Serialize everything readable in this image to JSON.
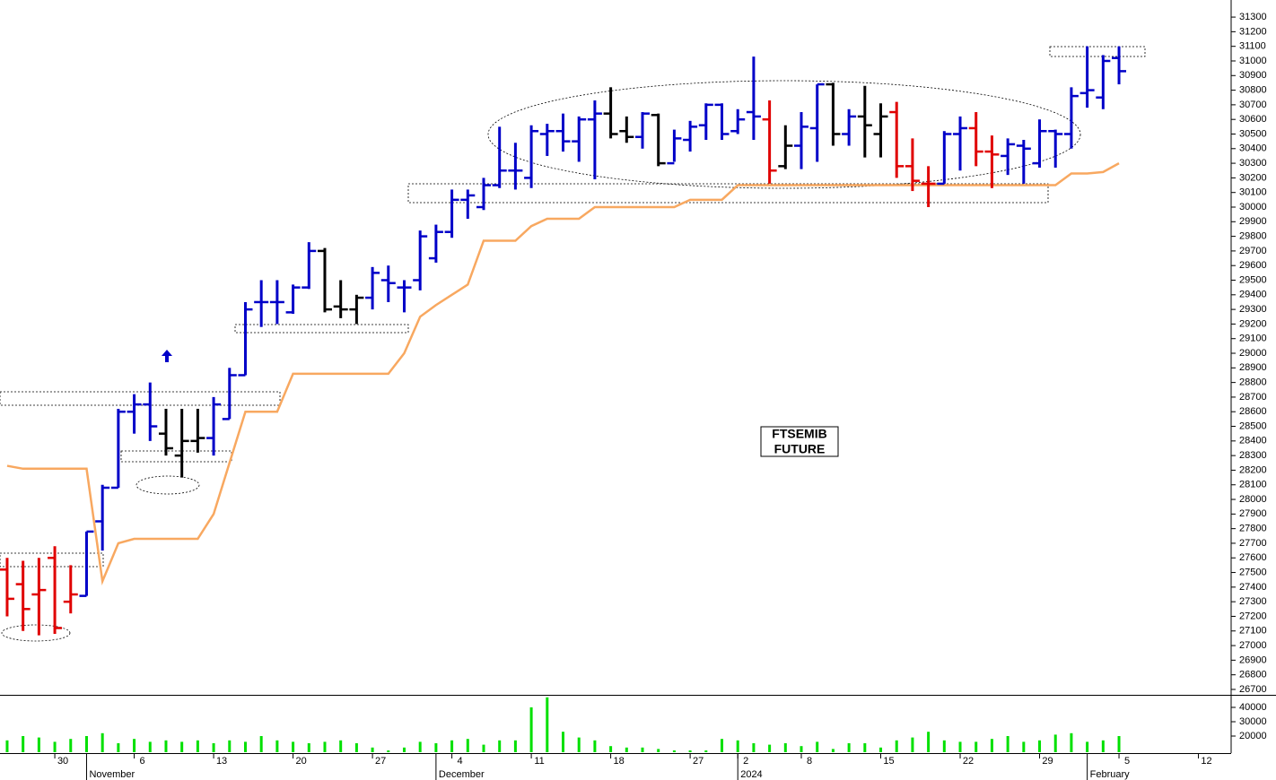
{
  "chart_data": [
    {
      "type": "ohlc",
      "annotation": [
        "FTSEMIB",
        "FUTURE"
      ],
      "open": [
        27520,
        27420,
        27350,
        27600,
        27300,
        27340,
        27850,
        28080,
        28600,
        28650,
        28450,
        28300,
        28400,
        28420,
        28550,
        28850,
        29350,
        29350,
        29280,
        29450,
        29700,
        29320,
        29300,
        29380,
        29500,
        29450,
        29500,
        29650,
        29830,
        30050,
        30000,
        30150,
        30250,
        30200,
        30500,
        30520,
        30450,
        30600,
        30640,
        30520,
        30480,
        30630,
        30300,
        30460,
        30560,
        30700,
        30520,
        30650,
        30600,
        30280,
        30420,
        30540,
        30840,
        30500,
        30620,
        30500,
        30650,
        30280,
        30160,
        30160,
        30500,
        30540,
        30380,
        30350,
        30420,
        30300,
        30520,
        30500,
        30780,
        30750,
        31020
      ],
      "high": [
        27600,
        27580,
        27600,
        27680,
        27550,
        27780,
        28100,
        28620,
        28720,
        28800,
        28620,
        28620,
        28620,
        28700,
        28900,
        29350,
        29500,
        29500,
        29470,
        29760,
        29720,
        29500,
        29400,
        29590,
        29600,
        29500,
        29840,
        29880,
        30120,
        30120,
        30200,
        30550,
        30440,
        30560,
        30570,
        30640,
        30620,
        30730,
        30820,
        30620,
        30650,
        30640,
        30530,
        30590,
        30710,
        30710,
        30670,
        31030,
        30730,
        30560,
        30650,
        30840,
        30850,
        30670,
        30830,
        30710,
        30720,
        30470,
        30280,
        30520,
        30620,
        30650,
        30490,
        30470,
        30460,
        30600,
        30530,
        30820,
        31100,
        31040,
        31100
      ],
      "low": [
        27200,
        27100,
        27070,
        27080,
        27220,
        27340,
        27650,
        28080,
        28450,
        28400,
        28300,
        28150,
        28320,
        28300,
        28550,
        28850,
        29180,
        29200,
        29270,
        29440,
        29280,
        29240,
        29200,
        29300,
        29350,
        29280,
        29430,
        29620,
        29790,
        29920,
        29980,
        30130,
        30120,
        30130,
        30350,
        30380,
        30310,
        30190,
        30470,
        30440,
        30400,
        30280,
        30310,
        30380,
        30460,
        30460,
        30500,
        30460,
        30160,
        30260,
        30260,
        30310,
        30420,
        30420,
        30340,
        30340,
        30200,
        30110,
        30000,
        30160,
        30250,
        30280,
        30130,
        30220,
        30160,
        30270,
        30270,
        30400,
        30680,
        30670,
        30840
      ],
      "close": [
        27320,
        27250,
        27380,
        27120,
        27350,
        27780,
        28080,
        28600,
        28650,
        28500,
        28350,
        28400,
        28420,
        28650,
        28850,
        29300,
        29350,
        29350,
        29450,
        29700,
        29300,
        29300,
        29380,
        29550,
        29480,
        29450,
        29800,
        29830,
        30050,
        30080,
        30150,
        30250,
        30250,
        30520,
        30520,
        30450,
        30600,
        30640,
        30500,
        30480,
        30640,
        30300,
        30470,
        30550,
        30700,
        30500,
        30600,
        30620,
        30250,
        30420,
        30550,
        30840,
        30500,
        30620,
        30560,
        30620,
        30280,
        30180,
        30160,
        30500,
        30540,
        30380,
        30360,
        30430,
        30400,
        30520,
        30500,
        30760,
        30800,
        31000,
        30930
      ],
      "colors": [
        "#e00000",
        "#e00000",
        "#e00000",
        "#e00000",
        "#e00000",
        "#0000c8",
        "#0000c8",
        "#0000c8",
        "#0000c8",
        "#0000c8",
        "#000000",
        "#000000",
        "#000000",
        "#0000c8",
        "#0000c8",
        "#0000c8",
        "#0000c8",
        "#0000c8",
        "#0000c8",
        "#0000c8",
        "#000000",
        "#000000",
        "#000000",
        "#0000c8",
        "#0000c8",
        "#0000c8",
        "#0000c8",
        "#0000c8",
        "#0000c8",
        "#0000c8",
        "#0000c8",
        "#0000c8",
        "#0000c8",
        "#0000c8",
        "#0000c8",
        "#0000c8",
        "#0000c8",
        "#0000c8",
        "#000000",
        "#000000",
        "#0000c8",
        "#000000",
        "#0000c8",
        "#0000c8",
        "#0000c8",
        "#0000c8",
        "#0000c8",
        "#0000c8",
        "#e00000",
        "#000000",
        "#0000c8",
        "#0000c8",
        "#000000",
        "#0000c8",
        "#000000",
        "#000000",
        "#e00000",
        "#e00000",
        "#e00000",
        "#0000c8",
        "#0000c8",
        "#e00000",
        "#e00000",
        "#0000c8",
        "#0000c8",
        "#0000c8",
        "#0000c8",
        "#0000c8",
        "#0000c8",
        "#0000c8",
        "#0000c8"
      ],
      "line": {
        "color": "#f8a860",
        "values": [
          28230,
          28210,
          28210,
          28210,
          28210,
          28210,
          27440,
          27700,
          27730,
          27730,
          27730,
          27730,
          27730,
          27900,
          28250,
          28600,
          28600,
          28600,
          28860,
          28860,
          28860,
          28860,
          28860,
          28860,
          28860,
          29000,
          29250,
          29330,
          29400,
          29470,
          29770,
          29770,
          29770,
          29870,
          29920,
          29920,
          29920,
          30000,
          30000,
          30000,
          30000,
          30000,
          30000,
          30050,
          30050,
          30050,
          30150,
          30150,
          30150,
          30150,
          30150,
          30150,
          30150,
          30150,
          30150,
          30150,
          30150,
          30150,
          30150,
          30150,
          30150,
          30150,
          30150,
          30150,
          30150,
          30150,
          30150,
          30230,
          30230,
          30240,
          30300
        ]
      },
      "xlim": [
        -0.45,
        77.06
      ],
      "ylim": [
        26663,
        31417
      ],
      "yticks": [
        26700,
        26800,
        26900,
        27000,
        27100,
        27200,
        27300,
        27400,
        27500,
        27600,
        27700,
        27800,
        27900,
        28000,
        28100,
        28200,
        28300,
        28400,
        28500,
        28600,
        28700,
        28800,
        28900,
        29000,
        29100,
        29200,
        29300,
        29400,
        29500,
        29600,
        29700,
        29800,
        29900,
        30000,
        30100,
        30200,
        30300,
        30400,
        30500,
        30600,
        30700,
        30800,
        30900,
        31000,
        31100,
        31200,
        31300
      ],
      "xticks": [
        {
          "value": 3,
          "label": "30"
        },
        {
          "value": 8,
          "label": "6"
        },
        {
          "value": 13,
          "label": "13"
        },
        {
          "value": 18,
          "label": "20"
        },
        {
          "value": 23,
          "label": "27"
        },
        {
          "value": 28,
          "label": "4"
        },
        {
          "value": 33,
          "label": "11"
        },
        {
          "value": 38,
          "label": "18"
        },
        {
          "value": 43,
          "label": "27"
        },
        {
          "value": 46,
          "label": "2"
        },
        {
          "value": 50,
          "label": "8"
        },
        {
          "value": 55,
          "label": "15"
        },
        {
          "value": 60,
          "label": "22"
        },
        {
          "value": 65,
          "label": "29"
        },
        {
          "value": 70,
          "label": "5"
        },
        {
          "value": 75,
          "label": "12"
        }
      ],
      "month_ticks": [
        {
          "value": 5,
          "label": "November"
        },
        {
          "value": 27,
          "label": "December"
        },
        {
          "value": 46,
          "label": "2024"
        },
        {
          "value": 68,
          "label": "February"
        }
      ]
    },
    {
      "type": "bar",
      "color": "#00e000",
      "values": [
        17000,
        20000,
        19000,
        16000,
        18000,
        20000,
        22000,
        15000,
        18000,
        16000,
        17000,
        16000,
        17000,
        15000,
        17000,
        16000,
        20000,
        17000,
        16000,
        15000,
        16000,
        17000,
        15000,
        12000,
        10000,
        12000,
        16000,
        15000,
        17000,
        18000,
        14000,
        17000,
        17000,
        40000,
        47000,
        23000,
        19000,
        17000,
        13000,
        12000,
        12000,
        11000,
        10000,
        10000,
        10000,
        18000,
        17000,
        15000,
        14000,
        15000,
        13000,
        16000,
        11000,
        15000,
        15000,
        12000,
        17000,
        19000,
        23000,
        17000,
        16000,
        16000,
        18000,
        20000,
        16000,
        17000,
        21000,
        22000,
        16000,
        17000,
        20000
      ],
      "ylim": [
        8750,
        48125
      ],
      "yticks": [
        20000,
        30000,
        40000
      ]
    }
  ]
}
